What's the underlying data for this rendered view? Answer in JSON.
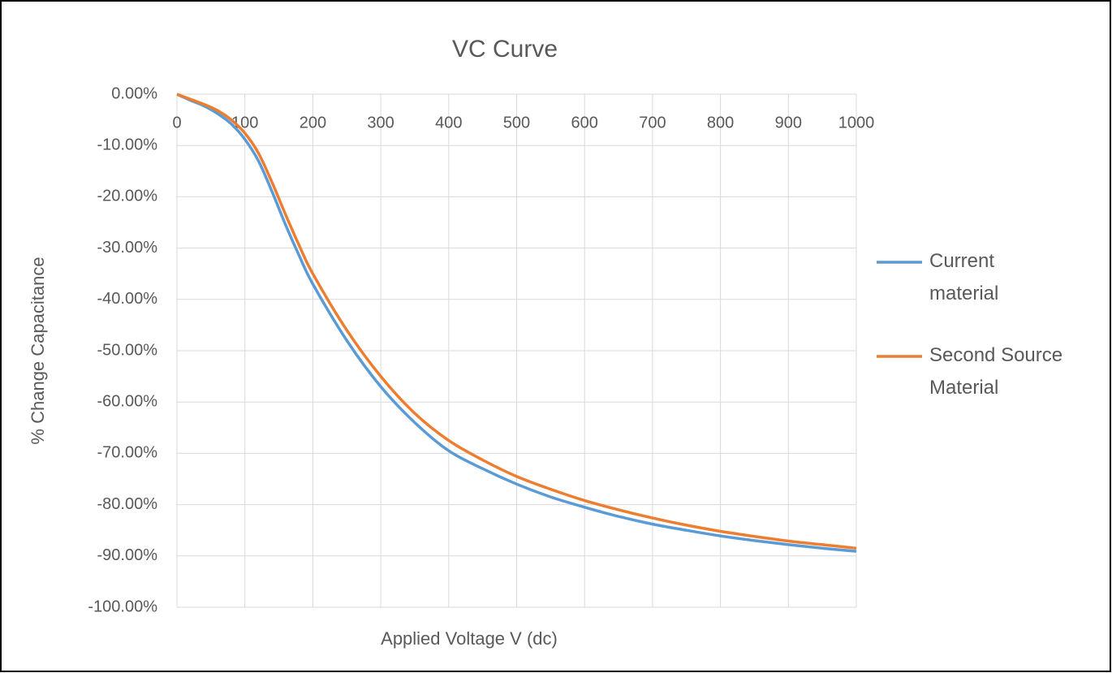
{
  "chart_data": {
    "type": "line",
    "title": "VC Curve",
    "x_label": "Applied Voltage V (dc)",
    "y_label": "% Change Capacitance",
    "x": [
      0,
      20,
      40,
      60,
      80,
      100,
      120,
      140,
      160,
      180,
      200,
      250,
      300,
      350,
      400,
      450,
      500,
      550,
      600,
      650,
      700,
      750,
      800,
      850,
      900,
      950,
      1000
    ],
    "series": [
      {
        "name": "Current material",
        "color": "#5b9bd5",
        "values": [
          0,
          -1.2,
          -2.3,
          -3.8,
          -5.8,
          -8.8,
          -13,
          -19,
          -25.5,
          -31.5,
          -37,
          -48,
          -57,
          -64,
          -69.5,
          -73,
          -76,
          -78.5,
          -80.5,
          -82.3,
          -83.8,
          -85,
          -86.1,
          -87,
          -87.8,
          -88.5,
          -89.1
        ]
      },
      {
        "name": "Second Source Material",
        "color": "#ed7d31",
        "values": [
          0,
          -1,
          -2,
          -3.2,
          -5,
          -7.6,
          -11.5,
          -17.2,
          -23.5,
          -29.5,
          -35,
          -46,
          -55,
          -62.2,
          -67.5,
          -71.3,
          -74.5,
          -77,
          -79.2,
          -81,
          -82.6,
          -84,
          -85.2,
          -86.2,
          -87.1,
          -87.8,
          -88.5
        ]
      }
    ],
    "xlim": [
      0,
      1000
    ],
    "xticks": [
      0,
      100,
      200,
      300,
      400,
      500,
      600,
      700,
      800,
      900,
      1000
    ],
    "ylim": [
      -100,
      0
    ],
    "yticks": [
      {
        "value": 0,
        "label": "0.00%"
      },
      {
        "value": -10,
        "label": "-10.00%"
      },
      {
        "value": -20,
        "label": "-20.00%"
      },
      {
        "value": -30,
        "label": "-30.00%"
      },
      {
        "value": -40,
        "label": "-40.00%"
      },
      {
        "value": -50,
        "label": "-50.00%"
      },
      {
        "value": -60,
        "label": "-60.00%"
      },
      {
        "value": -70,
        "label": "-70.00%"
      },
      {
        "value": -80,
        "label": "-80.00%"
      },
      {
        "value": -90,
        "label": "-90.00%"
      },
      {
        "value": -100,
        "label": "-100.00%"
      }
    ],
    "grid": true,
    "legend": "right"
  }
}
